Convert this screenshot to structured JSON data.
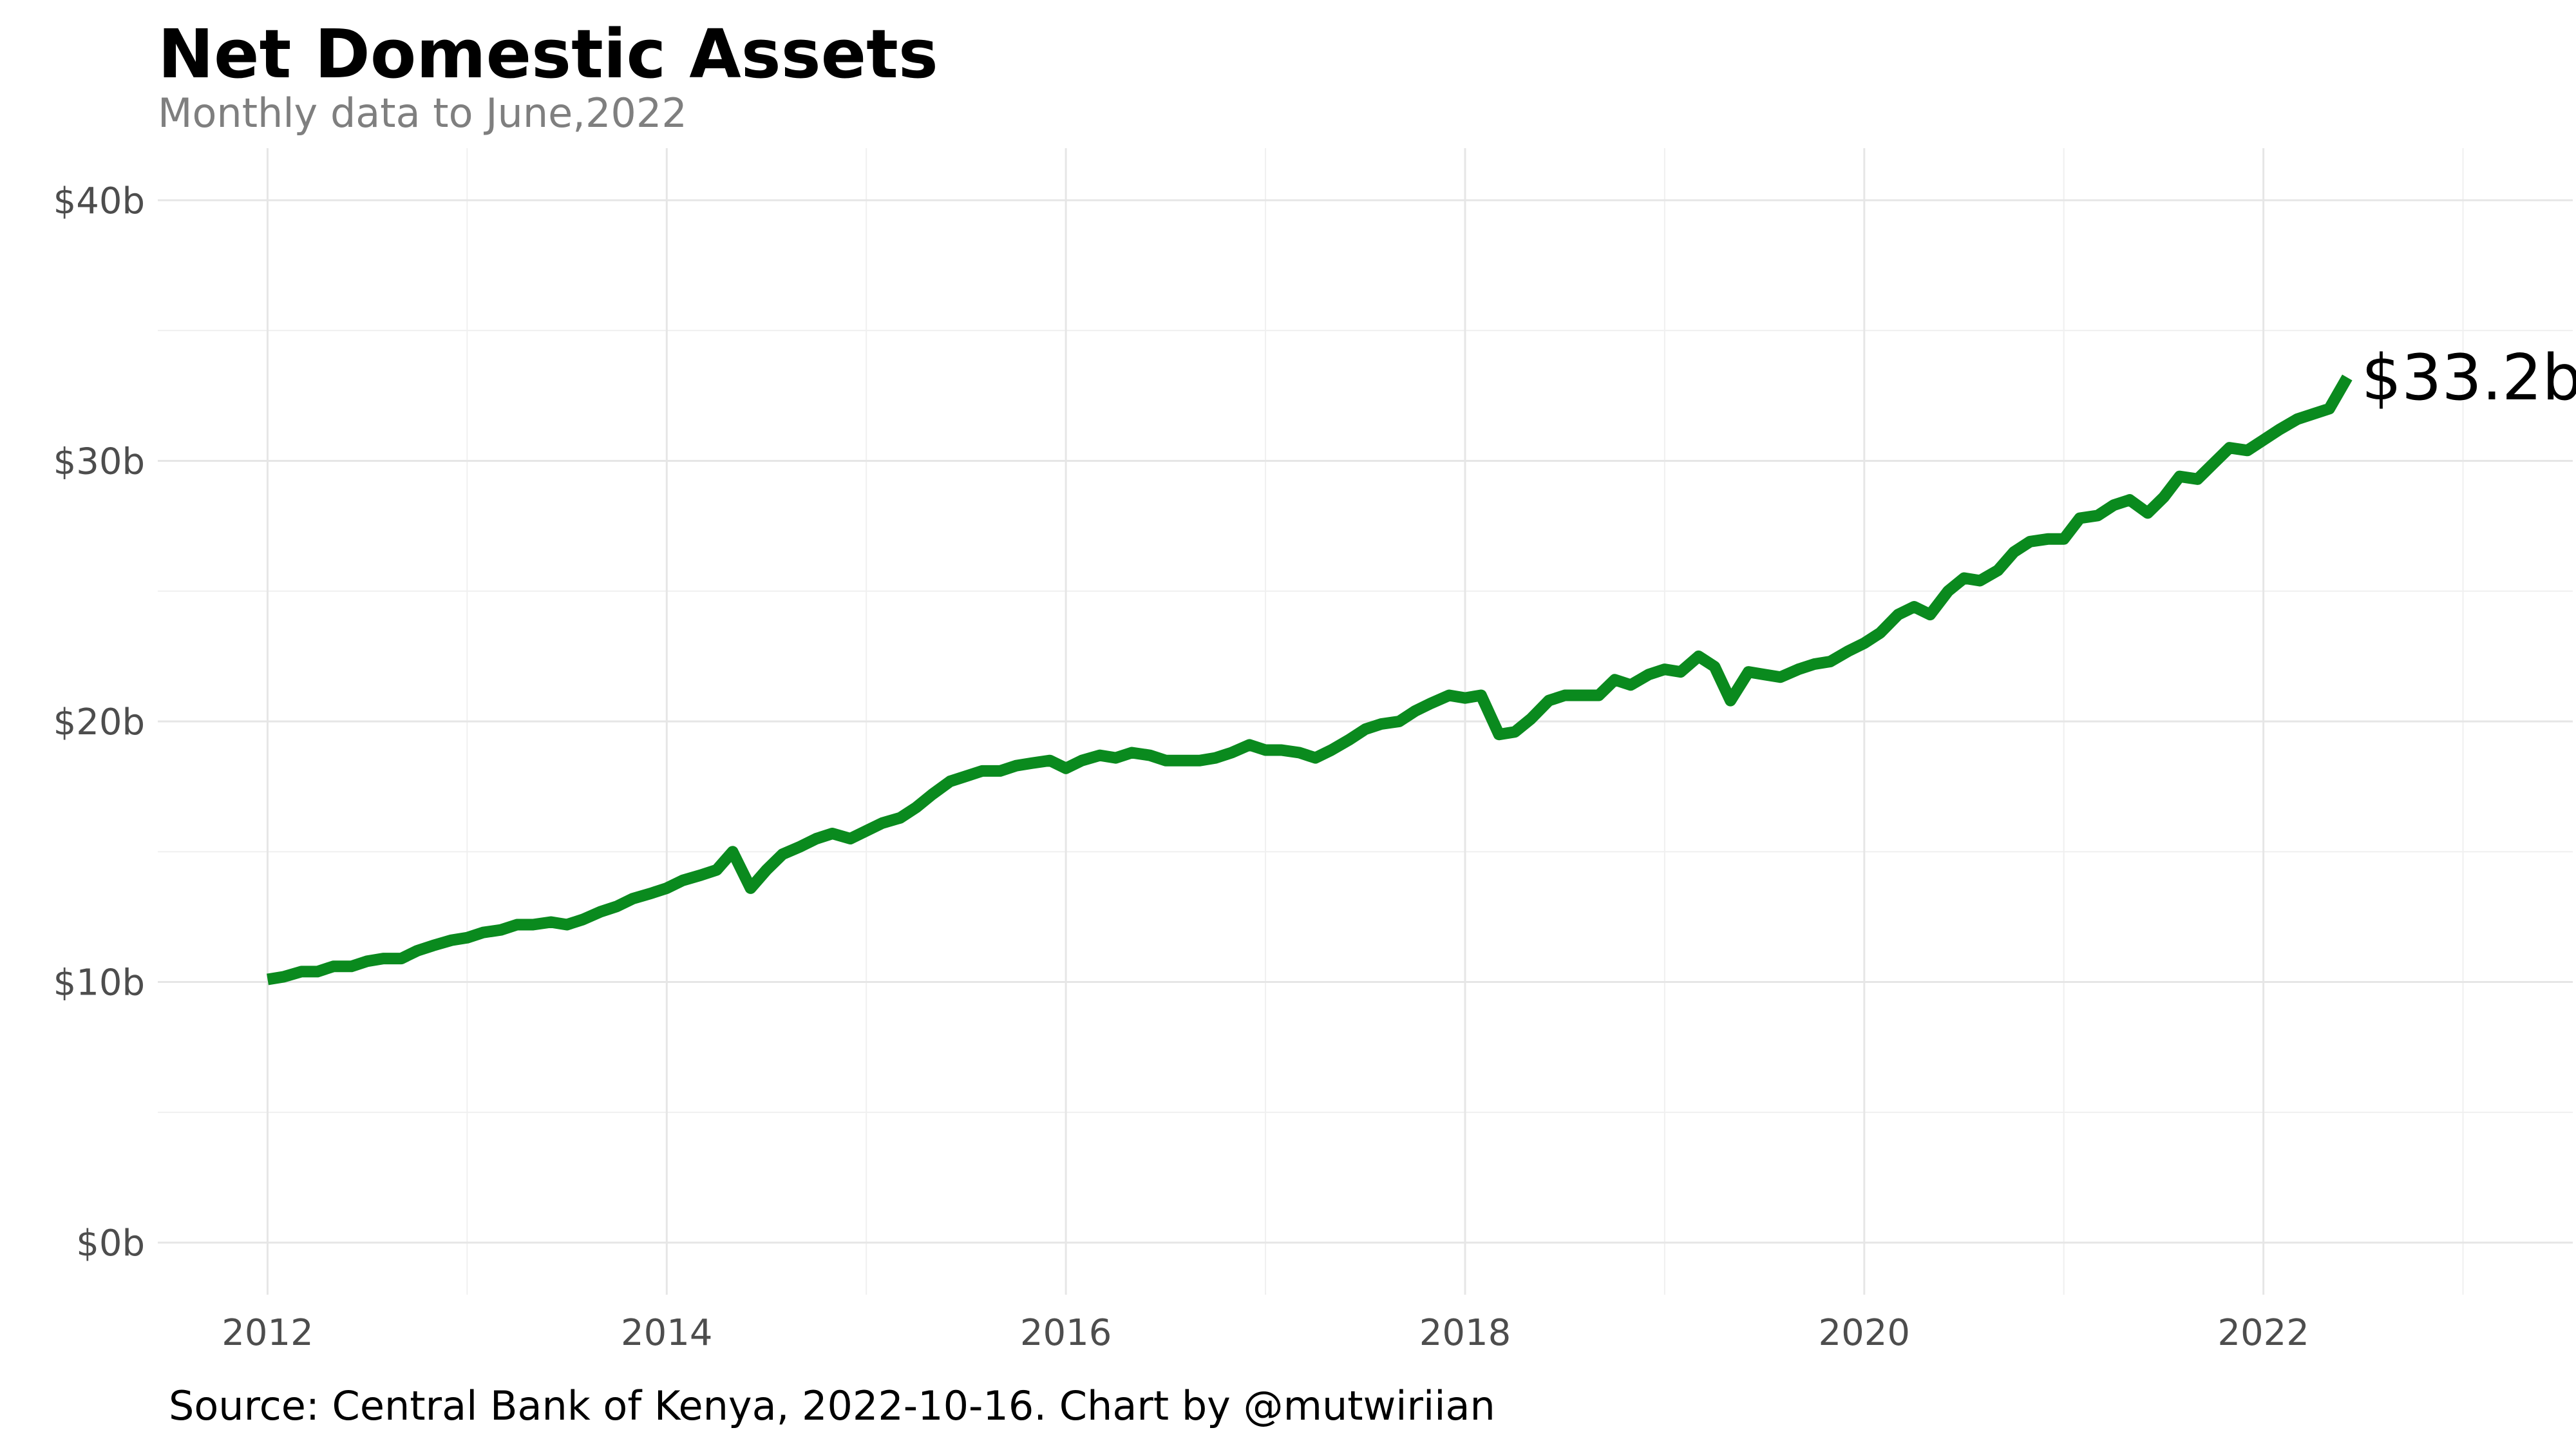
{
  "chart_data": {
    "type": "line",
    "title": "Net Domestic Assets",
    "subtitle": "Monthly data to June,2022",
    "caption": "Source: Central Bank of Kenya, 2022-10-16. Chart by @mutwiriian",
    "end_label": "$33.2b",
    "xlabel": "",
    "ylabel": "",
    "x_ticks": [
      "2012",
      "2014",
      "2016",
      "2018",
      "2020",
      "2022"
    ],
    "y_ticks": [
      "$0b",
      "$10b",
      "$20b",
      "$30b",
      "$40b"
    ],
    "xlim": [
      2011.45,
      2023.55
    ],
    "ylim": [
      -2,
      42
    ],
    "grid": true,
    "legend": "none",
    "line_color": "#0a8a1e",
    "series": [
      {
        "x": [
          2012.0,
          2012.08,
          2012.17,
          2012.25,
          2012.33,
          2012.42,
          2012.5,
          2012.58,
          2012.67,
          2012.75,
          2012.83,
          2012.92,
          2013.0,
          2013.08,
          2013.17,
          2013.25,
          2013.33,
          2013.42,
          2013.5,
          2013.58,
          2013.67,
          2013.75,
          2013.83,
          2013.92,
          2014.0,
          2014.08,
          2014.17,
          2014.25,
          2014.33,
          2014.42,
          2014.5,
          2014.58,
          2014.67,
          2014.75,
          2014.83,
          2014.92,
          2015.0,
          2015.08,
          2015.17,
          2015.25,
          2015.33,
          2015.42,
          2015.5,
          2015.58,
          2015.67,
          2015.75,
          2015.83,
          2015.92,
          2016.0,
          2016.08,
          2016.17,
          2016.25,
          2016.33,
          2016.42,
          2016.5,
          2016.58,
          2016.67,
          2016.75,
          2016.83,
          2016.92,
          2017.0,
          2017.08,
          2017.17,
          2017.25,
          2017.33,
          2017.42,
          2017.5,
          2017.58,
          2017.67,
          2017.75,
          2017.83,
          2017.92,
          2018.0,
          2018.08,
          2018.17,
          2018.25,
          2018.33,
          2018.42,
          2018.5,
          2018.58,
          2018.67,
          2018.75,
          2018.83,
          2018.92,
          2019.0,
          2019.08,
          2019.17,
          2019.25,
          2019.33,
          2019.42,
          2019.5,
          2019.58,
          2019.67,
          2019.75,
          2019.83,
          2019.92,
          2020.0,
          2020.08,
          2020.17,
          2020.25,
          2020.33,
          2020.42,
          2020.5,
          2020.58,
          2020.67,
          2020.75,
          2020.83,
          2020.92,
          2021.0,
          2021.08,
          2021.17,
          2021.25,
          2021.33,
          2021.42,
          2021.5,
          2021.58,
          2021.67,
          2021.75,
          2021.83,
          2021.92,
          2022.0,
          2022.08,
          2022.17,
          2022.25,
          2022.33,
          2022.42
        ],
        "y": [
          10.1,
          10.2,
          10.4,
          10.4,
          10.6,
          10.6,
          10.8,
          10.9,
          10.9,
          11.2,
          11.4,
          11.6,
          11.7,
          11.9,
          12.0,
          12.2,
          12.2,
          12.3,
          12.2,
          12.4,
          12.7,
          12.9,
          13.2,
          13.4,
          13.6,
          13.9,
          14.1,
          14.3,
          15.0,
          13.6,
          14.3,
          14.9,
          15.2,
          15.5,
          15.7,
          15.5,
          15.8,
          16.1,
          16.3,
          16.7,
          17.2,
          17.7,
          17.9,
          18.1,
          18.1,
          18.3,
          18.4,
          18.5,
          18.2,
          18.5,
          18.7,
          18.6,
          18.8,
          18.7,
          18.5,
          18.5,
          18.5,
          18.6,
          18.8,
          19.1,
          18.9,
          18.9,
          18.8,
          18.6,
          18.9,
          19.3,
          19.7,
          19.9,
          20.0,
          20.4,
          20.7,
          21.0,
          20.9,
          21.0,
          19.5,
          19.6,
          20.1,
          20.8,
          21.0,
          21.0,
          21.0,
          21.6,
          21.4,
          21.8,
          22.0,
          21.9,
          22.5,
          22.1,
          20.8,
          21.9,
          21.8,
          21.7,
          22.0,
          22.2,
          22.3,
          22.7,
          23.0,
          23.4,
          24.1,
          24.4,
          24.1,
          25.0,
          25.5,
          25.4,
          25.8,
          26.5,
          26.9,
          27.0,
          27.0,
          27.8,
          27.9,
          28.3,
          28.5,
          28.0,
          28.6,
          29.4,
          29.3,
          29.9,
          30.5,
          30.4,
          30.8,
          31.2,
          31.6,
          31.8,
          32.0,
          33.2
        ]
      }
    ]
  }
}
